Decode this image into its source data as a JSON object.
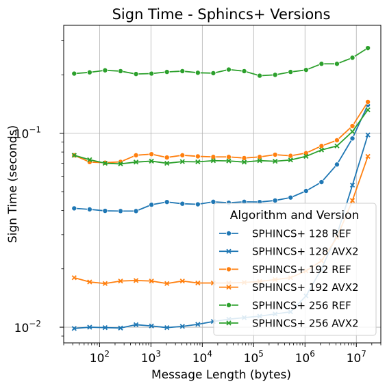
{
  "chart_data": {
    "type": "line",
    "title": "Sign Time - Sphincs+ Versions",
    "xlabel": "Message Length (bytes)",
    "ylabel": "Sign Time (seconds)",
    "xscale": "log",
    "yscale": "log",
    "xlim": [
      20,
      30000000
    ],
    "ylim": [
      0.0083,
      0.36
    ],
    "grid": true,
    "legend_title": "Algorithm and Version",
    "legend_placement": "lower-right",
    "x_ticks": [
      {
        "value": 100,
        "base": "10",
        "exp": "2"
      },
      {
        "value": 1000,
        "base": "10",
        "exp": "3"
      },
      {
        "value": 10000,
        "base": "10",
        "exp": "4"
      },
      {
        "value": 100000,
        "base": "10",
        "exp": "5"
      },
      {
        "value": 1000000,
        "base": "10",
        "exp": "6"
      },
      {
        "value": 10000000,
        "base": "10",
        "exp": "7"
      }
    ],
    "y_ticks": [
      {
        "value": 0.01,
        "base": "10",
        "exp": "−2"
      },
      {
        "value": 0.1,
        "base": "10",
        "exp": "−1"
      }
    ],
    "x": [
      32,
      64,
      128,
      256,
      512,
      1024,
      2048,
      4096,
      8192,
      16384,
      32768,
      65536,
      131072,
      262144,
      524288,
      1048576,
      2097152,
      4194304,
      8388608,
      16777216
    ],
    "series": [
      {
        "name": "SPHINCS+ 128 REF",
        "color": "#1f77b4",
        "marker": "circle",
        "values": [
          0.041,
          0.0405,
          0.0398,
          0.0397,
          0.0397,
          0.0428,
          0.0442,
          0.0433,
          0.043,
          0.0443,
          0.0438,
          0.0443,
          0.0442,
          0.045,
          0.0466,
          0.0504,
          0.056,
          0.069,
          0.094,
          0.14
        ]
      },
      {
        "name": "SPHINCS+ 128 AVX2",
        "color": "#1f77b4",
        "marker": "x",
        "values": [
          0.00985,
          0.01,
          0.00995,
          0.0099,
          0.0103,
          0.01015,
          0.00995,
          0.0101,
          0.01035,
          0.0107,
          0.011,
          0.0112,
          0.0114,
          0.0117,
          0.012,
          0.0145,
          0.02,
          0.03,
          0.054,
          0.098
        ]
      },
      {
        "name": "SPHINCS+ 192 REF",
        "color": "#ff7f0e",
        "marker": "circle",
        "values": [
          0.077,
          0.071,
          0.0705,
          0.0712,
          0.077,
          0.078,
          0.075,
          0.077,
          0.076,
          0.0755,
          0.0755,
          0.0745,
          0.0755,
          0.0775,
          0.0765,
          0.079,
          0.086,
          0.092,
          0.109,
          0.145
        ]
      },
      {
        "name": "SPHINCS+ 192 AVX2",
        "color": "#ff7f0e",
        "marker": "x",
        "values": [
          0.018,
          0.0171,
          0.0168,
          0.0173,
          0.0174,
          0.0173,
          0.0168,
          0.0173,
          0.0169,
          0.0169,
          0.0169,
          0.017,
          0.0172,
          0.0176,
          0.018,
          0.0195,
          0.022,
          0.029,
          0.045,
          0.076
        ]
      },
      {
        "name": "SPHINCS+ 256 REF",
        "color": "#2ca02c",
        "marker": "circle",
        "values": [
          0.203,
          0.206,
          0.211,
          0.209,
          0.202,
          0.203,
          0.207,
          0.209,
          0.205,
          0.204,
          0.213,
          0.209,
          0.198,
          0.2,
          0.207,
          0.212,
          0.228,
          0.228,
          0.245,
          0.275
        ]
      },
      {
        "name": "SPHINCS+ 256 AVX2",
        "color": "#2ca02c",
        "marker": "x",
        "values": [
          0.077,
          0.073,
          0.07,
          0.0695,
          0.071,
          0.0718,
          0.07,
          0.0714,
          0.0712,
          0.0722,
          0.072,
          0.071,
          0.0722,
          0.0717,
          0.0728,
          0.076,
          0.082,
          0.086,
          0.102,
          0.132
        ]
      }
    ]
  }
}
